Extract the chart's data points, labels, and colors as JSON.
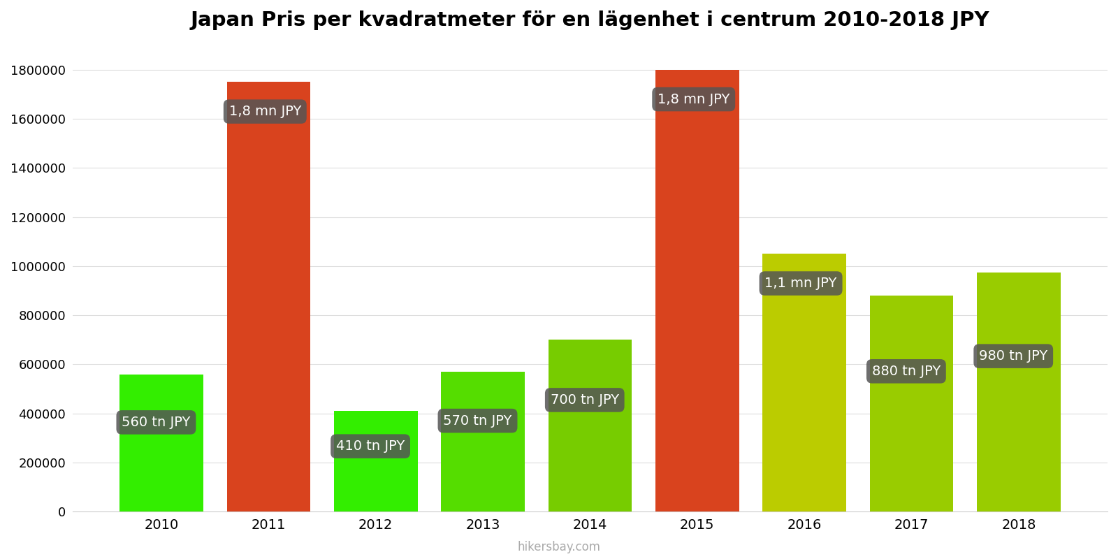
{
  "title": "Japan Pris per kvadratmeter för en lägenhet i centrum 2010-2018 JPY",
  "years": [
    2010,
    2011,
    2012,
    2013,
    2014,
    2015,
    2016,
    2017,
    2018
  ],
  "values": [
    560000,
    1750000,
    410000,
    570000,
    700000,
    1800000,
    1050000,
    880000,
    975000
  ],
  "bar_colors": [
    "#33ee00",
    "#d9431e",
    "#33ee00",
    "#55dd00",
    "#77cc00",
    "#d9431e",
    "#bbcc00",
    "#99cc00",
    "#99cc00"
  ],
  "labels": [
    "560 tn JPY",
    "1,8 mn JPY",
    "410 tn JPY",
    "570 tn JPY",
    "700 tn JPY",
    "1,8 mn JPY",
    "1,1 mn JPY",
    "880 tn JPY",
    "980 tn JPY"
  ],
  "ylim": [
    0,
    1900000
  ],
  "yticks": [
    0,
    200000,
    400000,
    600000,
    800000,
    1000000,
    1200000,
    1400000,
    1600000,
    1800000
  ],
  "background_color": "#ffffff",
  "watermark": "hikersbay.com",
  "title_fontsize": 21,
  "label_box_color": "#555555",
  "label_text_color": "#ffffff",
  "label_fontsize": 14,
  "bar_width": 0.78
}
